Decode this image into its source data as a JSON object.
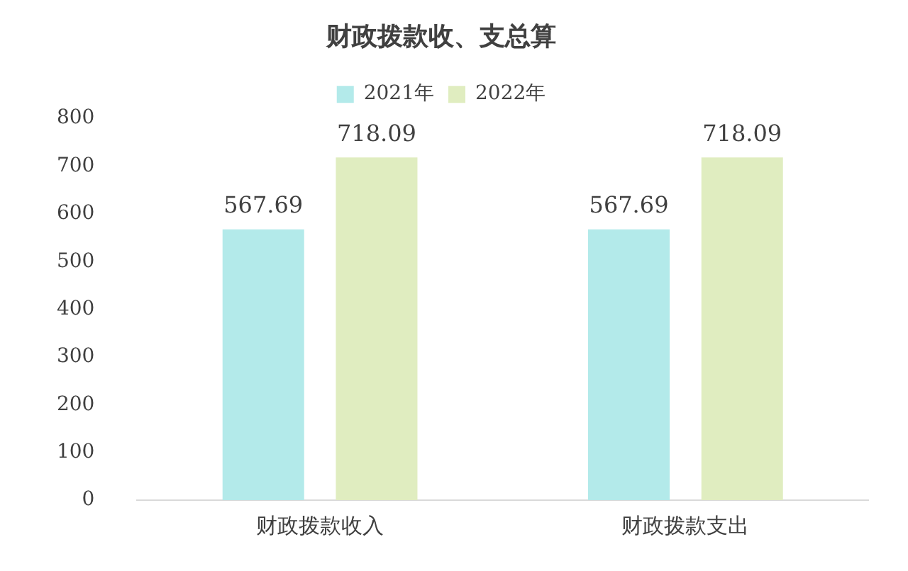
{
  "chart_data": {
    "type": "bar",
    "title": "财政拨款收、支总算",
    "categories": [
      "财政拨款收入",
      "财政拨款支出"
    ],
    "series": [
      {
        "name": "2021年",
        "color": "#b3eaea",
        "values": [
          567.69,
          567.69
        ]
      },
      {
        "name": "2022年",
        "color": "#e0edc0",
        "values": [
          718.09,
          718.09
        ]
      }
    ],
    "ylim": [
      0,
      800
    ],
    "yticks": [
      0,
      100,
      200,
      300,
      400,
      500,
      600,
      700,
      800
    ],
    "grid": false,
    "legend": "top",
    "data_labels": true
  }
}
